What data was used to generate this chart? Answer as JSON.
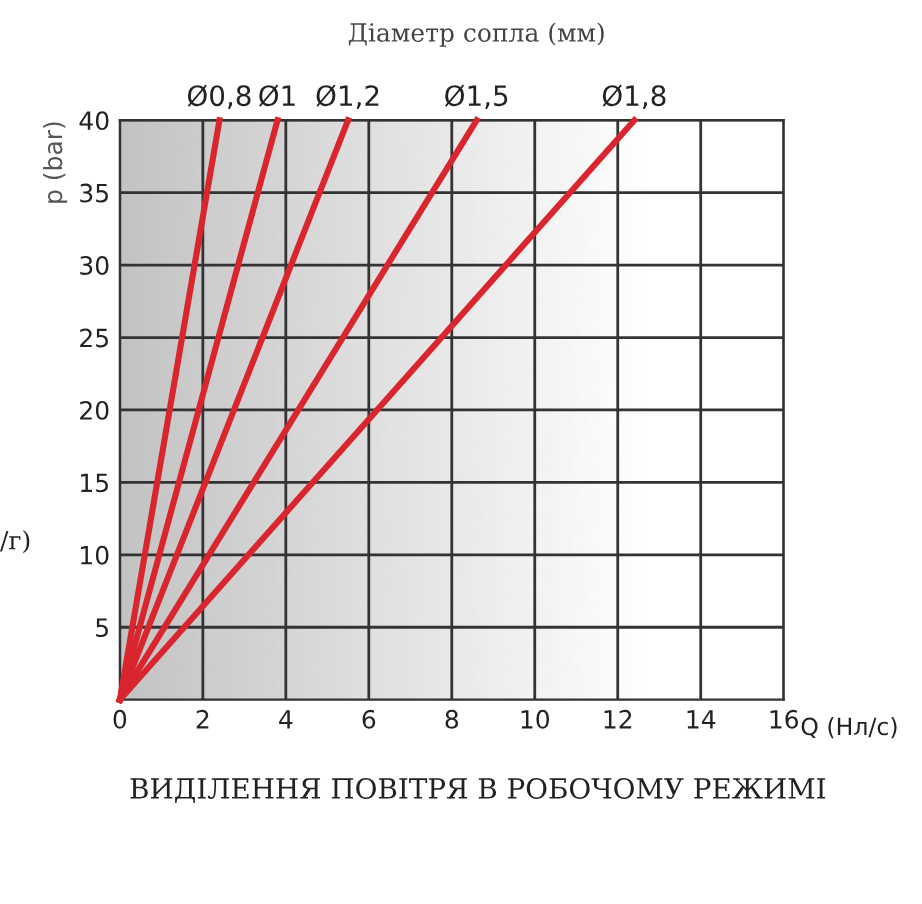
{
  "chart_data": {
    "type": "line",
    "title": "ВИДІЛЕННЯ ПОВІТРЯ В РОБОЧОМУ РЕЖИМІ",
    "xlabel": "Q (Нл/с)",
    "ylabel": "p (bar)",
    "x2label": "Діаметр сопла (мм)",
    "annotations": [
      "/г)"
    ],
    "series": [
      {
        "name": "Ø0,8",
        "color": "#d9262e",
        "x": [
          0,
          2.4
        ],
        "values": [
          0,
          40
        ]
      },
      {
        "name": "Ø1",
        "color": "#d9262e",
        "x": [
          0,
          3.8
        ],
        "values": [
          0,
          40
        ]
      },
      {
        "name": "Ø1,2",
        "color": "#d9262e",
        "x": [
          0,
          5.5
        ],
        "values": [
          0,
          40
        ]
      },
      {
        "name": "Ø1,5",
        "color": "#d9262e",
        "x": [
          0,
          8.6
        ],
        "values": [
          0,
          40
        ]
      },
      {
        "name": "Ø1,8",
        "color": "#d9262e",
        "x": [
          0,
          12.4
        ],
        "values": [
          0,
          40
        ]
      }
    ],
    "xlim": [
      0,
      16
    ],
    "ylim": [
      0,
      40
    ],
    "xticks": [
      0,
      2,
      4,
      6,
      8,
      10,
      12,
      14,
      16
    ],
    "yticks": [
      5,
      10,
      15,
      20,
      25,
      30,
      35,
      40
    ],
    "grid": true,
    "legend": false,
    "marker": "none",
    "line_style": "solid"
  }
}
